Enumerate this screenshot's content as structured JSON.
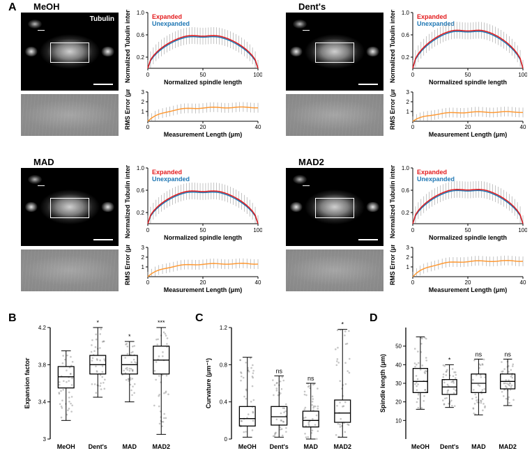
{
  "panels": {
    "A": "A",
    "B": "B",
    "C": "C",
    "D": "D"
  },
  "conditions": [
    "MeOH",
    "Dent's",
    "MAD",
    "MAD2"
  ],
  "tubulin_label": "Tubulin",
  "intensity_chart": {
    "ylabel": "Normalized Tubulin intensity",
    "xlabel": "Normalized spindle length",
    "legend_expanded": "Expanded",
    "legend_unexpanded": "Unexpanded",
    "xlim": [
      0,
      100
    ],
    "ylim": [
      0,
      1.0
    ],
    "xticks": [
      0,
      50,
      100
    ],
    "yticks": [
      0.2,
      0.6,
      1.0
    ],
    "color_expanded": "#e31a1c",
    "color_unexpanded": "#1f77b4",
    "error_color": "#888888",
    "background": "#ffffff"
  },
  "rms_chart": {
    "ylabel": "RMS Error (μm)",
    "xlabel": "Measurement Length (μm)",
    "xlim": [
      0,
      40
    ],
    "ylim": [
      0,
      3
    ],
    "xticks": [
      0,
      20,
      40
    ],
    "yticks": [
      1,
      2,
      3
    ],
    "color": "#ff9933"
  },
  "per_condition": {
    "MeOH": {
      "rms_at_40": 1.5,
      "tubulin_curve_peak": 0.62
    },
    "Dent's": {
      "rms_at_40": 1.0,
      "tubulin_curve_peak": 0.72
    },
    "MAD": {
      "rms_at_40": 1.4,
      "tubulin_curve_peak": 0.62
    },
    "MAD2": {
      "rms_at_40": 1.7,
      "tubulin_curve_peak": 0.65
    }
  },
  "boxplots": {
    "B": {
      "ylabel": "Expansion factor",
      "ylim": [
        3.0,
        4.2
      ],
      "yticks": [
        3.0,
        3.4,
        3.8,
        4.2
      ],
      "data": {
        "MeOH": {
          "min": 3.2,
          "q1": 3.55,
          "med": 3.67,
          "q3": 3.78,
          "max": 3.95,
          "sig": ""
        },
        "Dent's": {
          "min": 3.45,
          "q1": 3.7,
          "med": 3.8,
          "q3": 3.9,
          "max": 4.2,
          "sig": "*"
        },
        "MAD": {
          "min": 3.4,
          "q1": 3.7,
          "med": 3.8,
          "q3": 3.9,
          "max": 4.05,
          "sig": "*"
        },
        "MAD2": {
          "min": 3.05,
          "q1": 3.7,
          "med": 3.85,
          "q3": 4.0,
          "max": 4.2,
          "sig": "***"
        }
      }
    },
    "C": {
      "ylabel": "Curvature (μm⁻¹)",
      "ylim": [
        0,
        1.2
      ],
      "yticks": [
        0,
        0.4,
        0.8,
        1.2
      ],
      "data": {
        "MeOH": {
          "min": 0.02,
          "q1": 0.14,
          "med": 0.22,
          "q3": 0.35,
          "max": 0.88,
          "sig": ""
        },
        "Dent's": {
          "min": 0.02,
          "q1": 0.15,
          "med": 0.24,
          "q3": 0.35,
          "max": 0.68,
          "sig": "ns"
        },
        "MAD": {
          "min": 0.0,
          "q1": 0.13,
          "med": 0.2,
          "q3": 0.3,
          "max": 0.6,
          "sig": "ns"
        },
        "MAD2": {
          "min": 0.02,
          "q1": 0.18,
          "med": 0.28,
          "q3": 0.42,
          "max": 1.18,
          "sig": "*"
        }
      }
    },
    "D": {
      "ylabel": "Spindle length (μm)",
      "ylim": [
        0,
        60
      ],
      "yticks": [
        10,
        20,
        30,
        40,
        50
      ],
      "data": {
        "MeOH": {
          "min": 16,
          "q1": 25,
          "med": 31,
          "q3": 38,
          "max": 55,
          "sig": ""
        },
        "Dent's": {
          "min": 17,
          "q1": 24,
          "med": 28,
          "q3": 32,
          "max": 40,
          "sig": "*"
        },
        "MAD": {
          "min": 13,
          "q1": 25,
          "med": 30,
          "q3": 35,
          "max": 43,
          "sig": "ns"
        },
        "MAD2": {
          "min": 18,
          "q1": 27,
          "med": 31,
          "q3": 35,
          "max": 43,
          "sig": "ns"
        }
      }
    }
  },
  "colors": {
    "box_stroke": "#000000",
    "jitter_fill": "#808080",
    "jitter_opacity": 0.45
  }
}
